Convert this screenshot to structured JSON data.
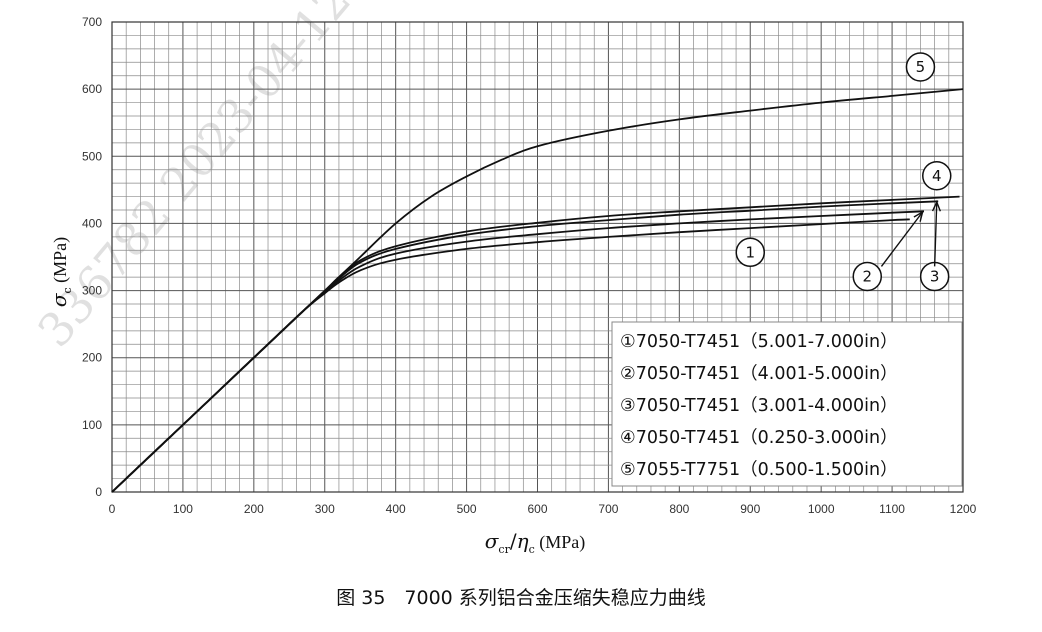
{
  "chart_data": {
    "type": "line",
    "xlim": [
      0,
      1200
    ],
    "ylim": [
      0,
      700
    ],
    "xticks": [
      0,
      100,
      200,
      300,
      400,
      500,
      600,
      700,
      800,
      900,
      1000,
      1100,
      1200
    ],
    "yticks": [
      0,
      100,
      200,
      300,
      400,
      500,
      600,
      700
    ],
    "grid": true,
    "xlabel": "σcr/ηc (MPa)",
    "ylabel": "σc (MPa)",
    "legend_position": "bottom-right",
    "legend": [
      "①7050-T7451（5.001-7.000in）",
      "②7050-T7451（4.001-5.000in）",
      "③7050-T7451（3.001-4.000in）",
      "④7050-T7451（0.250-3.000in）",
      "⑤7055-T7751（0.500-1.500in）"
    ],
    "series": [
      {
        "name": "①",
        "x": [
          0,
          100,
          200,
          270,
          300,
          320,
          350,
          400,
          500,
          600,
          700,
          800,
          900,
          1000,
          1100,
          1125
        ],
        "y": [
          0,
          100,
          200,
          270,
          296,
          312,
          330,
          346,
          362,
          372,
          380,
          387,
          393,
          399,
          405,
          406
        ]
      },
      {
        "name": "②",
        "x": [
          0,
          100,
          200,
          270,
          300,
          320,
          350,
          400,
          500,
          600,
          700,
          800,
          900,
          1000,
          1100,
          1145
        ],
        "y": [
          0,
          100,
          200,
          270,
          297,
          315,
          336,
          355,
          373,
          384,
          393,
          400,
          406,
          411,
          416,
          418
        ]
      },
      {
        "name": "③",
        "x": [
          0,
          100,
          200,
          270,
          300,
          320,
          350,
          400,
          500,
          600,
          700,
          800,
          900,
          1000,
          1100,
          1165
        ],
        "y": [
          0,
          100,
          200,
          270,
          298,
          318,
          342,
          362,
          383,
          396,
          405,
          413,
          419,
          425,
          430,
          433
        ]
      },
      {
        "name": "④",
        "x": [
          0,
          100,
          200,
          270,
          300,
          320,
          350,
          400,
          500,
          600,
          700,
          800,
          900,
          1000,
          1100,
          1195
        ],
        "y": [
          0,
          100,
          200,
          270,
          299,
          320,
          345,
          366,
          388,
          401,
          411,
          418,
          424,
          430,
          435,
          440
        ]
      },
      {
        "name": "⑤",
        "x": [
          0,
          100,
          200,
          270,
          300,
          320,
          350,
          400,
          450,
          500,
          550,
          600,
          700,
          800,
          900,
          1000,
          1100,
          1200
        ],
        "y": [
          0,
          100,
          200,
          270,
          300,
          320,
          350,
          400,
          440,
          470,
          495,
          515,
          538,
          555,
          568,
          580,
          590,
          600
        ]
      }
    ],
    "markers": [
      {
        "label": "①",
        "x": 900,
        "y": 357
      },
      {
        "label": "②",
        "x": 1065,
        "y": 321
      },
      {
        "label": "③",
        "x": 1160,
        "y": 321
      },
      {
        "label": "④",
        "x": 1163,
        "y": 471
      },
      {
        "label": "⑤",
        "x": 1140,
        "y": 633
      }
    ]
  },
  "caption": "图 35　7000 系列铝合金压缩失稳应力曲线",
  "watermark": "336782 2023-04-12"
}
